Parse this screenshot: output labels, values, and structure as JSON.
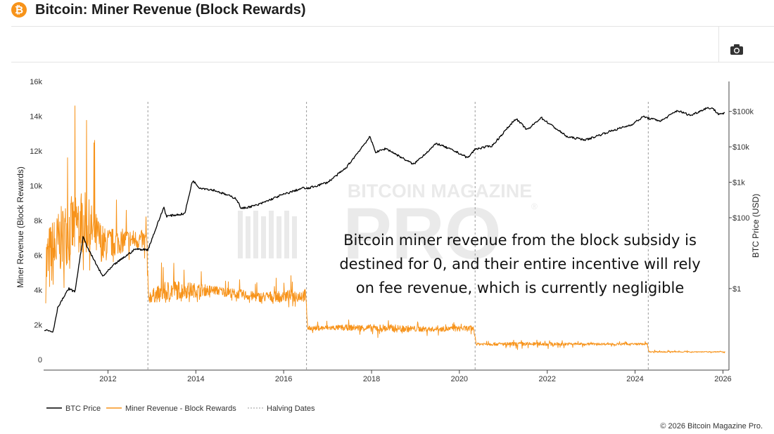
{
  "header": {
    "logo_glyph": "₿",
    "title": "Bitcoin: Miner Revenue (Block Rewards)"
  },
  "toolbar": {
    "camera_icon": "camera-icon"
  },
  "watermark": {
    "text_top": "BITCOIN MAGAZINE",
    "text_big": "PRO",
    "registered": "®"
  },
  "annotation": {
    "lines": [
      "Bitcoin miner revenue from the block subsidy is",
      "destined for 0, and their entire incentive will rely",
      "on fee revenue, which is currently negligible"
    ]
  },
  "legend": {
    "items": [
      "BTC Price",
      "Miner Revenue - Block Rewards",
      "Halving Dates"
    ]
  },
  "footer": {
    "copyright": "© 2026 Bitcoin Magazine Pro."
  },
  "colors": {
    "btc_price": "#000000",
    "miner_revenue": "#f7931a",
    "halving": "#9a9a9a",
    "grid": "#eeeeee",
    "brand": "#f7931a"
  },
  "chart_data": {
    "type": "line",
    "title": "Bitcoin: Miner Revenue (Block Rewards)",
    "x_axis": {
      "type": "date",
      "range": [
        "2010-07-15",
        "2026-02-20"
      ],
      "ticks": [
        "2012",
        "2014",
        "2016",
        "2018",
        "2020",
        "2022",
        "2024",
        "2026"
      ]
    },
    "y_left": {
      "label": "Miner Revenue (Block Rewards)",
      "range": [
        -600,
        16000
      ],
      "ticks": [
        0,
        2000,
        4000,
        6000,
        8000,
        10000,
        12000,
        14000,
        16000
      ],
      "tick_labels": [
        "0",
        "2k",
        "4k",
        "6k",
        "8k",
        "10k",
        "12k",
        "14k",
        "16k"
      ]
    },
    "y_right": {
      "label": "BTC Price (USD)",
      "scale": "log",
      "range": [
        0.005,
        700000
      ],
      "ticks": [
        1,
        100,
        1000,
        10000,
        100000
      ],
      "tick_labels": [
        "$1",
        "$100",
        "$1k",
        "$10k",
        "$100k"
      ]
    },
    "grid": false,
    "legend_position": "bottom-left",
    "halving_dates": [
      "2012-11-28",
      "2016-07-09",
      "2020-05-11",
      "2024-04-20"
    ],
    "series": [
      {
        "name": "Miner Revenue - Block Rewards",
        "axis": "left",
        "style": "noisy-band",
        "points": [
          [
            "2010-08-01",
            5400,
            3600,
            15000
          ],
          [
            "2011-01-01",
            7200,
            4000,
            13800
          ],
          [
            "2011-06-01",
            8000,
            5000,
            15200
          ],
          [
            "2011-12-01",
            6600,
            5400,
            10800
          ],
          [
            "2012-06-01",
            6900,
            5600,
            8800
          ],
          [
            "2012-11-20",
            6900,
            5600,
            8400
          ],
          [
            "2012-12-01",
            3600,
            2700,
            4600
          ],
          [
            "2013-06-01",
            4000,
            3100,
            6300
          ],
          [
            "2014-06-01",
            4000,
            3400,
            4800
          ],
          [
            "2015-06-01",
            3600,
            3000,
            4500
          ],
          [
            "2016-07-01",
            3700,
            3000,
            5000
          ],
          [
            "2016-07-20",
            1800,
            1500,
            2200
          ],
          [
            "2017-06-01",
            1850,
            1500,
            2350
          ],
          [
            "2018-06-01",
            1800,
            1100,
            2350
          ],
          [
            "2019-06-01",
            1750,
            1400,
            2100
          ],
          [
            "2020-05-01",
            1800,
            1300,
            2200
          ],
          [
            "2020-05-20",
            900,
            700,
            1100
          ],
          [
            "2021-06-01",
            900,
            550,
            1150
          ],
          [
            "2022-06-01",
            900,
            650,
            1100
          ],
          [
            "2023-06-01",
            900,
            750,
            1050
          ],
          [
            "2024-04-10",
            900,
            750,
            1050
          ],
          [
            "2024-04-25",
            450,
            380,
            560
          ],
          [
            "2025-06-01",
            450,
            380,
            520
          ],
          [
            "2026-01-20",
            450,
            390,
            510
          ]
        ]
      },
      {
        "name": "BTC Price",
        "axis": "right",
        "style": "line",
        "points": [
          [
            "2010-07-18",
            0.07
          ],
          [
            "2010-10-01",
            0.06
          ],
          [
            "2010-11-10",
            0.3
          ],
          [
            "2011-02-10",
            1
          ],
          [
            "2011-04-01",
            0.8
          ],
          [
            "2011-06-08",
            28
          ],
          [
            "2011-08-01",
            11
          ],
          [
            "2011-11-18",
            2.2
          ],
          [
            "2012-03-01",
            5
          ],
          [
            "2012-08-15",
            13
          ],
          [
            "2012-11-28",
            12.5
          ],
          [
            "2013-04-10",
            200
          ],
          [
            "2013-05-01",
            110
          ],
          [
            "2013-10-01",
            130
          ],
          [
            "2013-12-04",
            1130
          ],
          [
            "2014-02-01",
            700
          ],
          [
            "2014-06-01",
            600
          ],
          [
            "2014-12-01",
            350
          ],
          [
            "2015-01-14",
            180
          ],
          [
            "2015-06-01",
            230
          ],
          [
            "2015-12-01",
            420
          ],
          [
            "2016-06-16",
            700
          ],
          [
            "2016-07-09",
            650
          ],
          [
            "2017-01-01",
            1000
          ],
          [
            "2017-06-01",
            2500
          ],
          [
            "2017-12-17",
            19000
          ],
          [
            "2018-02-06",
            7000
          ],
          [
            "2018-05-01",
            9000
          ],
          [
            "2018-12-15",
            3200
          ],
          [
            "2019-06-26",
            12500
          ],
          [
            "2019-12-15",
            7000
          ],
          [
            "2020-03-12",
            4900
          ],
          [
            "2020-05-11",
            8600
          ],
          [
            "2020-10-01",
            10800
          ],
          [
            "2021-04-14",
            63000
          ],
          [
            "2021-07-20",
            29800
          ],
          [
            "2021-11-10",
            67000
          ],
          [
            "2022-06-18",
            19000
          ],
          [
            "2022-11-21",
            15800
          ],
          [
            "2023-06-01",
            27000
          ],
          [
            "2023-12-01",
            42000
          ],
          [
            "2024-03-14",
            72000
          ],
          [
            "2024-04-20",
            64000
          ],
          [
            "2024-08-05",
            54000
          ],
          [
            "2024-12-17",
            106000
          ],
          [
            "2025-04-08",
            77000
          ],
          [
            "2025-08-14",
            123000
          ],
          [
            "2025-10-06",
            125000
          ],
          [
            "2025-11-21",
            85000
          ],
          [
            "2026-01-20",
            90000
          ]
        ]
      }
    ]
  }
}
